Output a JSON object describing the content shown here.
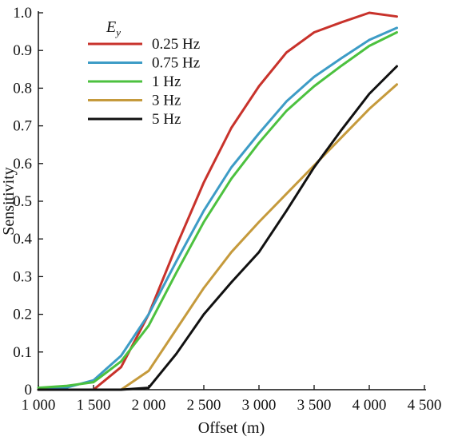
{
  "chart_data": {
    "type": "line",
    "xlabel": "Offset (m)",
    "ylabel": "Sensitivity",
    "xlim": [
      1000,
      4500
    ],
    "ylim": [
      0,
      1.0
    ],
    "x_ticks": [
      1000,
      1500,
      2000,
      2500,
      3000,
      3500,
      4000,
      4500
    ],
    "x_tick_labels": [
      "1 000",
      "1 500",
      "2 000",
      "2 500",
      "3 000",
      "3 500",
      "4 000",
      "4 500"
    ],
    "y_ticks": [
      0,
      0.1,
      0.2,
      0.3,
      0.4,
      0.5,
      0.6,
      0.7,
      0.8,
      0.9,
      1.0
    ],
    "y_tick_labels": [
      "0",
      "0.1",
      "0.2",
      "0.3",
      "0.4",
      "0.5",
      "0.6",
      "0.7",
      "0.8",
      "0.9",
      "1.0"
    ],
    "grid": false,
    "legend": {
      "title_main": "E",
      "title_sub": "y",
      "placement": "top-left"
    },
    "x": [
      1000,
      1250,
      1500,
      1750,
      2000,
      2250,
      2500,
      2750,
      3000,
      3250,
      3500,
      3750,
      4000,
      4250
    ],
    "series": [
      {
        "name": "0.25 Hz",
        "color": "#c8322b",
        "values": [
          0.0,
          0.0,
          0.0,
          0.06,
          0.2,
          0.38,
          0.55,
          0.695,
          0.805,
          0.895,
          0.948,
          0.975,
          1.0,
          0.99
        ]
      },
      {
        "name": "0.75 Hz",
        "color": "#3d9cc6",
        "values": [
          0.0,
          0.005,
          0.025,
          0.09,
          0.2,
          0.34,
          0.475,
          0.59,
          0.68,
          0.765,
          0.83,
          0.88,
          0.928,
          0.96
        ]
      },
      {
        "name": "1 Hz",
        "color": "#4cc13f",
        "values": [
          0.005,
          0.01,
          0.02,
          0.075,
          0.17,
          0.31,
          0.445,
          0.56,
          0.655,
          0.74,
          0.805,
          0.86,
          0.912,
          0.948
        ]
      },
      {
        "name": "3 Hz",
        "color": "#c59a3c",
        "values": [
          0.0,
          0.0,
          0.0,
          0.0,
          0.05,
          0.16,
          0.27,
          0.365,
          0.445,
          0.52,
          0.595,
          0.67,
          0.745,
          0.81
        ]
      },
      {
        "name": "5 Hz",
        "color": "#111111",
        "values": [
          0.0,
          0.0,
          0.0,
          0.0,
          0.005,
          0.095,
          0.2,
          0.285,
          0.365,
          0.475,
          0.59,
          0.69,
          0.785,
          0.858
        ]
      }
    ]
  }
}
